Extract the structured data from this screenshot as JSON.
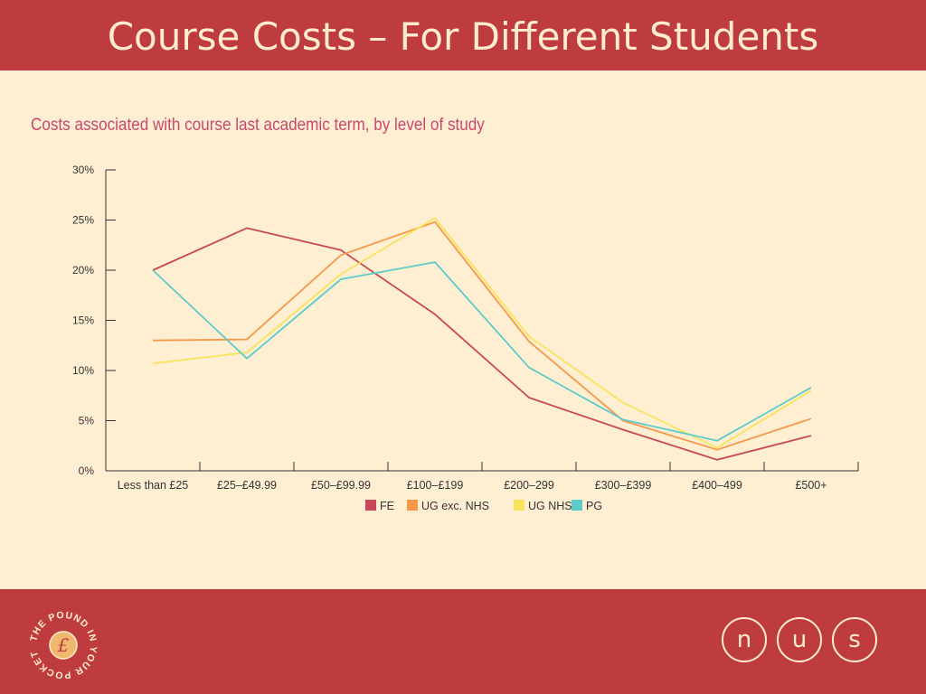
{
  "slide": {
    "title": "Course Costs – For Different Students"
  },
  "chart_data": {
    "type": "line",
    "title": "Costs associated with course last academic term, by level of study",
    "categories": [
      "Less than £25",
      "£25–£49.99",
      "£50–£99.99",
      "£100–£199",
      "£200–299",
      "£300–£399",
      "£400–499",
      "£500+"
    ],
    "y_ticks": [
      "0%",
      "5%",
      "10%",
      "15%",
      "20%",
      "25%",
      "30%"
    ],
    "ylim": [
      0,
      30
    ],
    "xlabel": "",
    "ylabel": "",
    "grid": false,
    "legend_position": "bottom",
    "series": [
      {
        "name": "FE",
        "color": "#c8485a",
        "values": [
          20,
          24.2,
          22,
          15.6,
          7.3,
          4.1,
          1.1,
          3.5
        ]
      },
      {
        "name": "UG exc. NHS",
        "color": "#f4994a",
        "values": [
          13,
          13.1,
          21.5,
          24.8,
          12.9,
          5.0,
          2.1,
          5.2
        ]
      },
      {
        "name": "UG NHS",
        "color": "#f8e35a",
        "values": [
          10.7,
          11.8,
          19.6,
          25.2,
          13.4,
          6.8,
          2.3,
          8.0
        ]
      },
      {
        "name": "PG",
        "color": "#5ecbc9",
        "values": [
          20,
          11.2,
          19.1,
          20.8,
          10.3,
          5.1,
          3.0,
          8.3
        ]
      }
    ]
  },
  "footer": {
    "logo_text": "THE POUND IN YOUR POCKET",
    "logo_symbol": "£",
    "nus_letters": [
      "n",
      "u",
      "s"
    ]
  }
}
